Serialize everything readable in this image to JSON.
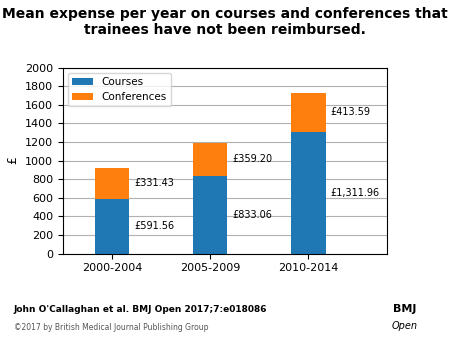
{
  "chart_data": {
    "type": "bar",
    "title": "Mean expense per year on courses and conferences that trainees have not been reimbursed.",
    "ylabel": "£",
    "categories": [
      "2000-2004",
      "2005-2009",
      "2010-2014"
    ],
    "series": [
      {
        "name": "Courses",
        "values": [
          591.56,
          833.06,
          1311.96
        ],
        "value_labels": [
          "£591.56",
          "£833.06",
          "£1,311.96"
        ]
      },
      {
        "name": "Conferences",
        "values": [
          331.43,
          359.2,
          413.59
        ],
        "value_labels": [
          "£331.43",
          "£359.20",
          "£413.59"
        ]
      }
    ],
    "stacked": true,
    "data_labels": true,
    "ylim": [
      0,
      2000
    ],
    "yticks": [
      0,
      200,
      400,
      600,
      800,
      1000,
      1200,
      1400,
      1600,
      1800,
      2000
    ],
    "grid": true,
    "legend": "upper left",
    "annotations": [
      "John O'Callaghan et al. BMJ Open 2017;7:e018086",
      "©2017 by British Medical Journal Publishing Group",
      "BMJ",
      "Open"
    ]
  }
}
